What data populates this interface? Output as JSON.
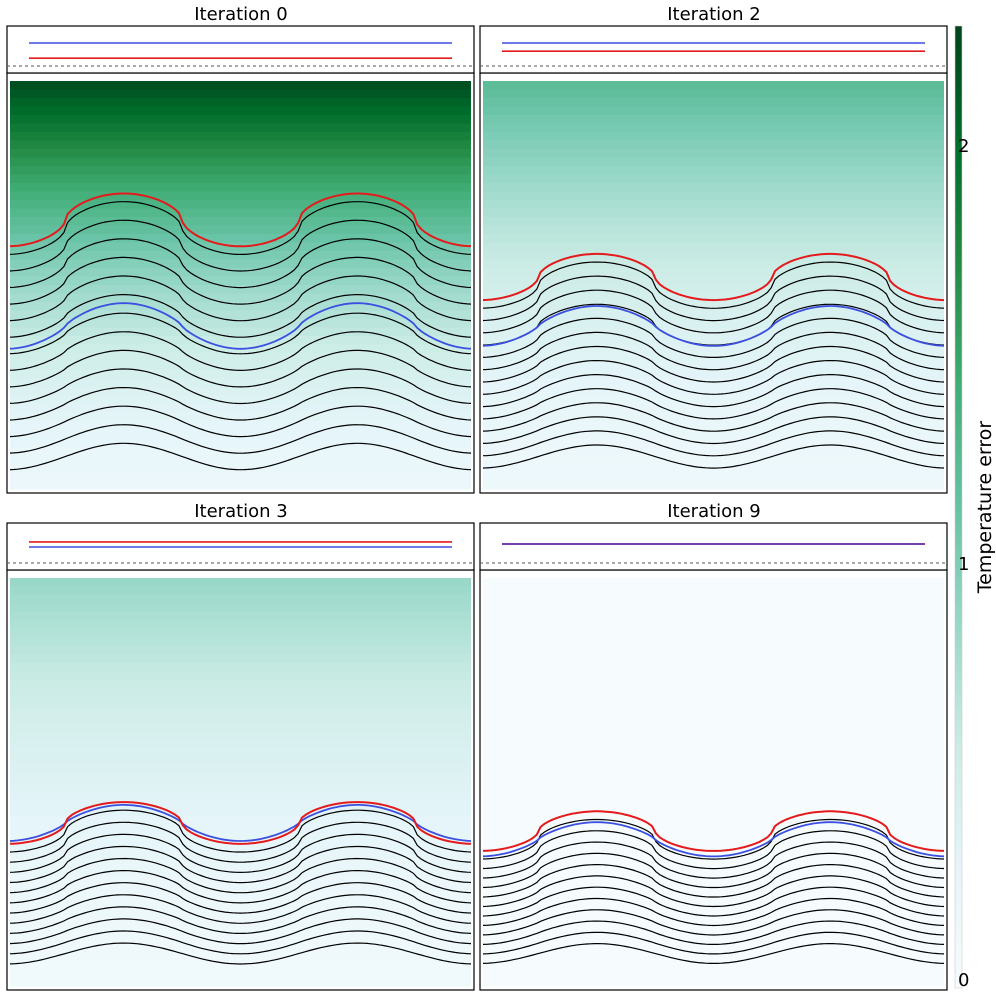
{
  "chart_data": {
    "type": "line",
    "panels": [
      {
        "title": "Iteration 0",
        "error_top": 2.45,
        "error_surface": 0.2,
        "interface_mismatch": 0.8,
        "amplitude": 0.48,
        "upper_level": 0.62,
        "true_level": 0.38,
        "contours": 14,
        "highlight": "red-above-blue"
      },
      {
        "title": "Iteration 2",
        "error_top": 1.35,
        "error_surface": 0.18,
        "interface_mismatch": 0.3,
        "amplitude": 0.42,
        "upper_level": 0.48,
        "true_level": 0.38,
        "contours": 14,
        "highlight": "red-above-blue"
      },
      {
        "title": "Iteration 3",
        "error_top": 0.95,
        "error_surface": 0.12,
        "interface_mismatch": -0.15,
        "amplitude": 0.38,
        "upper_level": 0.36,
        "true_level": 0.38,
        "contours": 12,
        "highlight": "red-below-blue"
      },
      {
        "title": "Iteration 9",
        "error_top": 0.02,
        "error_surface": 0.02,
        "interface_mismatch": 0.0,
        "amplitude": 0.36,
        "upper_level": 0.34,
        "true_level": 0.34,
        "contours": 12,
        "highlight": "red-on-blue"
      }
    ],
    "colorbar": {
      "label": "Temperature error",
      "ticks": [
        "0",
        "1",
        "2"
      ],
      "range": [
        0,
        2.5
      ],
      "colormap": [
        "#f7fcfd",
        "#e5f5f9",
        "#ccece6",
        "#99d8c9",
        "#66c2a4",
        "#41ae76",
        "#238b45",
        "#006d2c",
        "#00441b"
      ]
    },
    "colors": {
      "estimate": "#e41a1c",
      "truth": "#3b4fe0",
      "contour": "#000000",
      "dashed": "#555555"
    }
  }
}
